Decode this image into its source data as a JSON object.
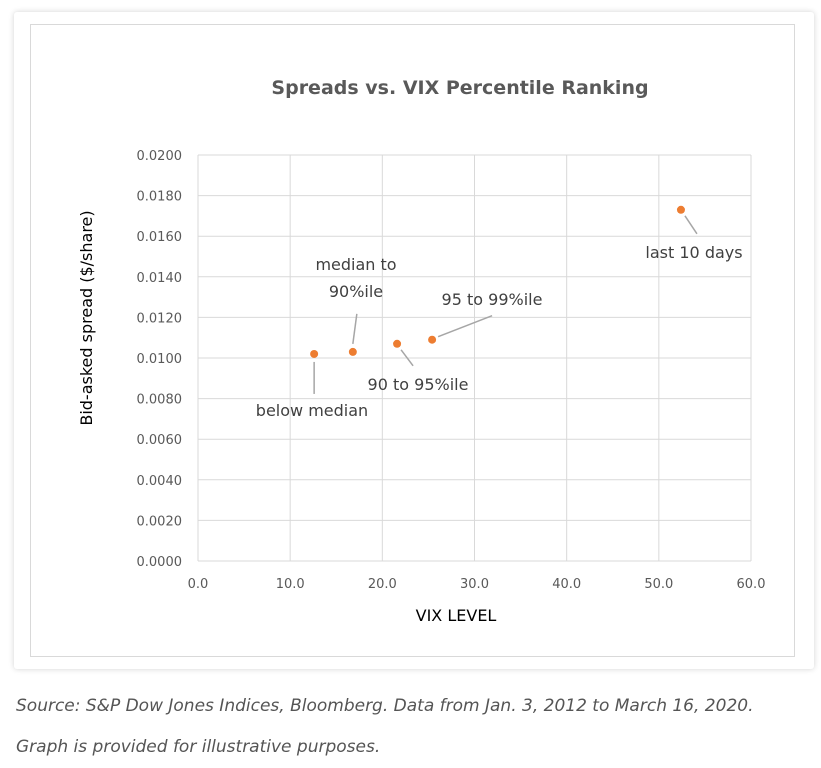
{
  "colors": {
    "marker": "#ED7D31",
    "grid": "#d9d9d9",
    "leader": "#a6a6a6",
    "text": "#595959"
  },
  "caption": "Source: S&P Dow Jones Indices, Bloomberg. Data from Jan. 3, 2012 to March 16, 2020. Graph is provided for illustrative purposes.",
  "chart_data": {
    "type": "scatter",
    "title": "Spreads vs. VIX Percentile Ranking",
    "xlabel": "VIX LEVEL",
    "ylabel": "Bid-asked spread  ($/share)",
    "xlim": [
      0,
      60
    ],
    "ylim": [
      0,
      0.02
    ],
    "grid": true,
    "x_ticks": [
      "0.0",
      "10.0",
      "20.0",
      "30.0",
      "40.0",
      "50.0",
      "60.0"
    ],
    "y_ticks": [
      "0.0000",
      "0.0020",
      "0.0040",
      "0.0060",
      "0.0080",
      "0.0100",
      "0.0120",
      "0.0140",
      "0.0160",
      "0.0180",
      "0.0200"
    ],
    "points": [
      {
        "x": 12.6,
        "y": 0.0102,
        "label": [
          "below median"
        ]
      },
      {
        "x": 16.8,
        "y": 0.0103,
        "label": [
          "median to",
          "90%ile"
        ]
      },
      {
        "x": 21.6,
        "y": 0.0107,
        "label": [
          "90 to 95%ile"
        ]
      },
      {
        "x": 25.4,
        "y": 0.0109,
        "label": [
          "95 to 99%ile"
        ]
      },
      {
        "x": 52.4,
        "y": 0.0173,
        "label": [
          "last 10 days"
        ]
      }
    ]
  }
}
